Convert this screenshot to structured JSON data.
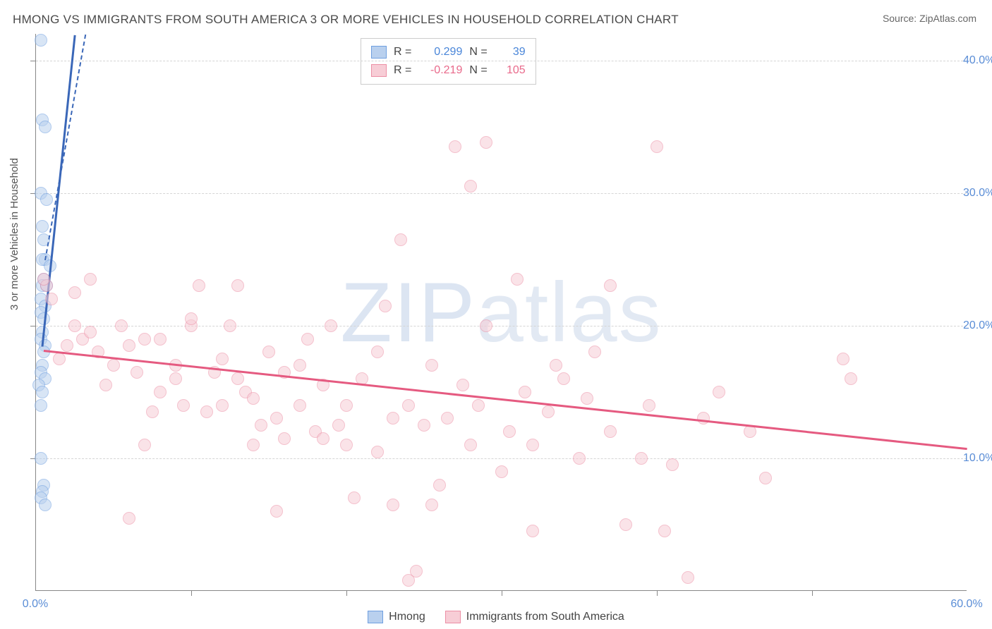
{
  "title": "HMONG VS IMMIGRANTS FROM SOUTH AMERICA 3 OR MORE VEHICLES IN HOUSEHOLD CORRELATION CHART",
  "source": "Source: ZipAtlas.com",
  "ylabel": "3 or more Vehicles in Household",
  "watermark_a": "ZIP",
  "watermark_b": "atlas",
  "chart": {
    "type": "scatter",
    "xlim": [
      0,
      60
    ],
    "ylim": [
      0,
      42
    ],
    "xticks": [
      0,
      60
    ],
    "xtick_labels": [
      "0.0%",
      "60.0%"
    ],
    "yticks": [
      10,
      20,
      30,
      40
    ],
    "ytick_labels": [
      "10.0%",
      "20.0%",
      "30.0%",
      "40.0%"
    ],
    "ygrid": [
      10,
      20,
      30,
      40
    ],
    "xgrid_minor": [
      10,
      20,
      30,
      40,
      50
    ],
    "plot_bg": "#ffffff",
    "grid_color": "#d5d5d5",
    "axis_color": "#888888"
  },
  "series": [
    {
      "name": "Hmong",
      "color_fill": "#b9d0ee",
      "color_stroke": "#6f9fe0",
      "stat_color": "#4a86d9",
      "r": 0.299,
      "r_str": "0.299",
      "n": 39,
      "trend": {
        "x1": 0.4,
        "y1": 18.5,
        "x2": 2.5,
        "y2": 42,
        "color": "#3a67b8",
        "width": 3,
        "dashed_ext": true
      },
      "points": [
        [
          0.3,
          41.5
        ],
        [
          0.4,
          35.5
        ],
        [
          0.6,
          35
        ],
        [
          0.3,
          30
        ],
        [
          0.7,
          29.5
        ],
        [
          0.6,
          25
        ],
        [
          0.4,
          25
        ],
        [
          0.9,
          24.5
        ],
        [
          0.5,
          23.5
        ],
        [
          0.4,
          23
        ],
        [
          0.3,
          22
        ],
        [
          0.6,
          21.5
        ],
        [
          0.3,
          21
        ],
        [
          0.5,
          20.5
        ],
        [
          0.4,
          19.5
        ],
        [
          0.3,
          19
        ],
        [
          0.6,
          18.5
        ],
        [
          0.5,
          18
        ],
        [
          0.4,
          17
        ],
        [
          0.3,
          16.5
        ],
        [
          0.6,
          16
        ],
        [
          0.2,
          15.5
        ],
        [
          0.4,
          15
        ],
        [
          0.3,
          10
        ],
        [
          0.5,
          8
        ],
        [
          0.4,
          7.5
        ],
        [
          0.3,
          7
        ],
        [
          0.6,
          6.5
        ],
        [
          0.4,
          27.5
        ],
        [
          0.5,
          26.5
        ],
        [
          0.3,
          14
        ],
        [
          0.7,
          23
        ]
      ]
    },
    {
      "name": "Immigrants from South America",
      "color_fill": "#f7cdd6",
      "color_stroke": "#ec8fa5",
      "stat_color": "#e96a8b",
      "r": -0.219,
      "r_str": "-0.219",
      "n": 105,
      "trend": {
        "x1": 0.5,
        "y1": 18.2,
        "x2": 60,
        "y2": 10.8,
        "color": "#e55a80",
        "width": 3,
        "dashed_ext": false
      },
      "points": [
        [
          0.7,
          23
        ],
        [
          0.5,
          23.5
        ],
        [
          2,
          18.5
        ],
        [
          3,
          19
        ],
        [
          2.5,
          20
        ],
        [
          1.5,
          17.5
        ],
        [
          4,
          18
        ],
        [
          3.5,
          19.5
        ],
        [
          5,
          17
        ],
        [
          6,
          18.5
        ],
        [
          5.5,
          20
        ],
        [
          7,
          19
        ],
        [
          4.5,
          15.5
        ],
        [
          6.5,
          16.5
        ],
        [
          8,
          19
        ],
        [
          8,
          15
        ],
        [
          9,
          16
        ],
        [
          7.5,
          13.5
        ],
        [
          10,
          20
        ],
        [
          9.5,
          14
        ],
        [
          11,
          13.5
        ],
        [
          10.5,
          23
        ],
        [
          10,
          20.5
        ],
        [
          11.5,
          16.5
        ],
        [
          12,
          17.5
        ],
        [
          12.5,
          20
        ],
        [
          13,
          16
        ],
        [
          12,
          14
        ],
        [
          13.5,
          15
        ],
        [
          14,
          14.5
        ],
        [
          14.5,
          12.5
        ],
        [
          15,
          18
        ],
        [
          14,
          11
        ],
        [
          15.5,
          13
        ],
        [
          15.5,
          6
        ],
        [
          16,
          16.5
        ],
        [
          16,
          11.5
        ],
        [
          17,
          17
        ],
        [
          17.5,
          19
        ],
        [
          17,
          14
        ],
        [
          18,
          12
        ],
        [
          18.5,
          15.5
        ],
        [
          19,
          20
        ],
        [
          18.5,
          11.5
        ],
        [
          20,
          14
        ],
        [
          19.5,
          12.5
        ],
        [
          20.5,
          7
        ],
        [
          21,
          16
        ],
        [
          20,
          11
        ],
        [
          22,
          18
        ],
        [
          22.5,
          21.5
        ],
        [
          23,
          13
        ],
        [
          22,
          10.5
        ],
        [
          23.5,
          26.5
        ],
        [
          23,
          6.5
        ],
        [
          24,
          14
        ],
        [
          24.5,
          1.5
        ],
        [
          25,
          12.5
        ],
        [
          24,
          0.8
        ],
        [
          25.5,
          17
        ],
        [
          26,
          8
        ],
        [
          26.5,
          13
        ],
        [
          27,
          33.5
        ],
        [
          25.5,
          6.5
        ],
        [
          27.5,
          15.5
        ],
        [
          28,
          11
        ],
        [
          28.5,
          14
        ],
        [
          28,
          30.5
        ],
        [
          29,
          20
        ],
        [
          29,
          33.8
        ],
        [
          30,
          9
        ],
        [
          30.5,
          12
        ],
        [
          31,
          23.5
        ],
        [
          31.5,
          15
        ],
        [
          32,
          11
        ],
        [
          32,
          4.5
        ],
        [
          33,
          13.5
        ],
        [
          33.5,
          17
        ],
        [
          34,
          16
        ],
        [
          35,
          10
        ],
        [
          35.5,
          14.5
        ],
        [
          36,
          18
        ],
        [
          37,
          12
        ],
        [
          37,
          23
        ],
        [
          38,
          5
        ],
        [
          39,
          10
        ],
        [
          39.5,
          14
        ],
        [
          40,
          33.5
        ],
        [
          40.5,
          4.5
        ],
        [
          41,
          9.5
        ],
        [
          42,
          1
        ],
        [
          43,
          13
        ],
        [
          44,
          15
        ],
        [
          47,
          8.5
        ],
        [
          46,
          12
        ],
        [
          52,
          17.5
        ],
        [
          52.5,
          16
        ],
        [
          6,
          5.5
        ],
        [
          7,
          11
        ],
        [
          13,
          23
        ],
        [
          3.5,
          23.5
        ],
        [
          2.5,
          22.5
        ],
        [
          1,
          22
        ],
        [
          9,
          17
        ]
      ]
    }
  ],
  "legend": {
    "items": [
      {
        "swatch_fill": "#b9d0ee",
        "swatch_border": "#6f9fe0",
        "label": "Hmong"
      },
      {
        "swatch_fill": "#f7cdd6",
        "swatch_border": "#ec8fa5",
        "label": "Immigrants from South America"
      }
    ]
  }
}
